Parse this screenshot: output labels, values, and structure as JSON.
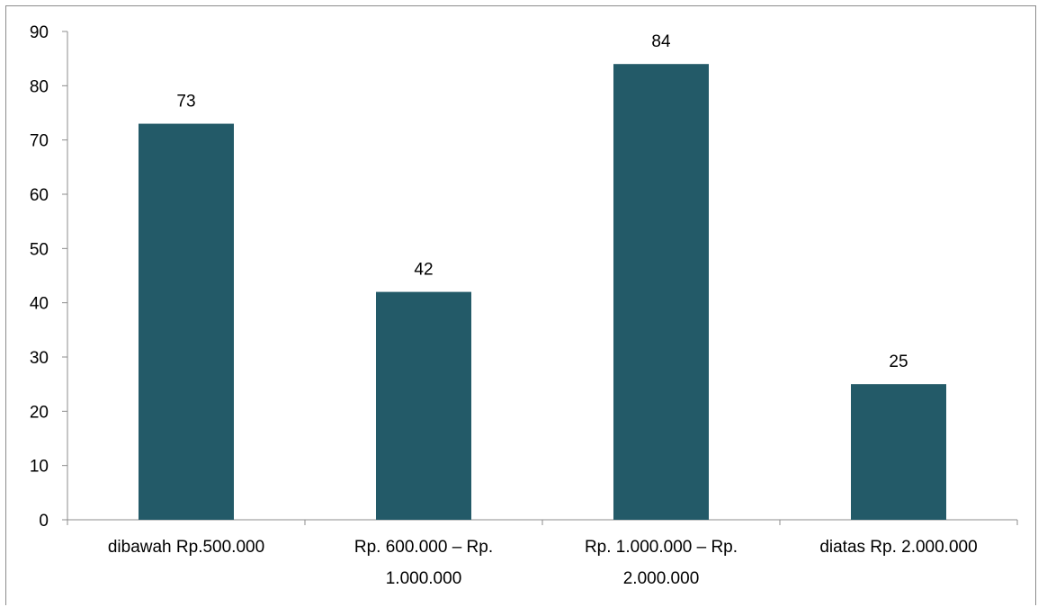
{
  "chart_data": {
    "type": "bar",
    "title": "",
    "xlabel": "",
    "ylabel": "",
    "categories": [
      [
        "dibawah Rp.500.000"
      ],
      [
        "Rp. 600.000 – Rp.",
        "1.000.000"
      ],
      [
        "Rp. 1.000.000 – Rp.",
        "2.000.000"
      ],
      [
        "diatas Rp. 2.000.000"
      ]
    ],
    "values": [
      73,
      42,
      84,
      25
    ],
    "data_labels": [
      "73",
      "42",
      "84",
      "25"
    ],
    "ylim": [
      0,
      90
    ],
    "yticks": [
      0,
      10,
      20,
      30,
      40,
      50,
      60,
      70,
      80,
      90
    ],
    "ytick_labels": [
      "0",
      "10",
      "20",
      "30",
      "40",
      "50",
      "60",
      "70",
      "80",
      "90"
    ],
    "grid": false,
    "legend": "none",
    "colors": {
      "bar": "#235a68",
      "axis": "#8c8c8c"
    }
  }
}
